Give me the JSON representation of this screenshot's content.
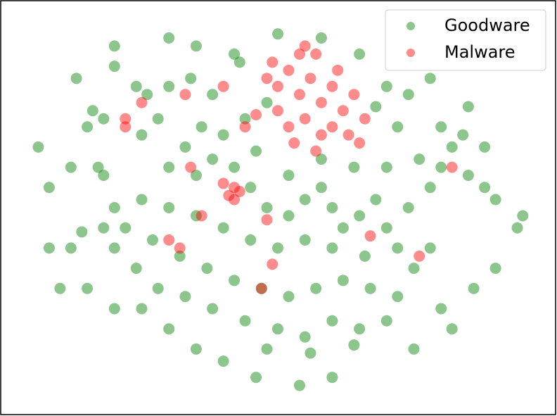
{
  "chart_data": {
    "type": "scatter",
    "xlim": [
      0,
      100
    ],
    "ylim": [
      0,
      100
    ],
    "legend": "upper right",
    "alpha": 0.45,
    "series": [
      {
        "name": "Goodware",
        "color": "#008000",
        "x": [
          30,
          33,
          36,
          40,
          28,
          25,
          35,
          38,
          42,
          45,
          48,
          52,
          55,
          58,
          60,
          62,
          65,
          68,
          70,
          72,
          66,
          60,
          55,
          50,
          45,
          40,
          35,
          30,
          25,
          20,
          22,
          27,
          32,
          37,
          42,
          47,
          52,
          57,
          62,
          67,
          72,
          75,
          78,
          74,
          78,
          80,
          82,
          85,
          88,
          90,
          76,
          70,
          64,
          58,
          52,
          46,
          44,
          48,
          38,
          34,
          30,
          26,
          42,
          43,
          18,
          16,
          17,
          18,
          18,
          20,
          24,
          28,
          33,
          38,
          44,
          50,
          55,
          60,
          65,
          70,
          35,
          40,
          48,
          56,
          64,
          30,
          25,
          15,
          13,
          20,
          24,
          68,
          72,
          80,
          84,
          70,
          74,
          12,
          14,
          8,
          8,
          6,
          94,
          95,
          90,
          86,
          80,
          82,
          75,
          20,
          15,
          10,
          46,
          54,
          60,
          35,
          50,
          58,
          30,
          65,
          78,
          85,
          20,
          12,
          88
        ],
        "y": [
          60,
          65,
          70,
          68,
          72,
          68,
          58,
          62,
          60,
          55,
          50,
          48,
          52,
          55,
          50,
          45,
          48,
          52,
          45,
          40,
          38,
          40,
          42,
          40,
          42,
          45,
          48,
          50,
          52,
          50,
          45,
          42,
          38,
          35,
          32,
          30,
          28,
          30,
          32,
          30,
          28,
          35,
          40,
          50,
          55,
          60,
          65,
          58,
          55,
          52,
          62,
          60,
          60,
          62,
          58,
          64,
          72,
          76,
          78,
          82,
          80,
          78,
          88,
          86,
          72,
          74,
          60,
          58,
          45,
          40,
          35,
          30,
          28,
          25,
          22,
          20,
          18,
          22,
          20,
          22,
          15,
          12,
          15,
          14,
          16,
          20,
          25,
          70,
          82,
          85,
          80,
          75,
          70,
          70,
          68,
          80,
          78,
          40,
          44,
          55,
          40,
          65,
          45,
          48,
          35,
          30,
          25,
          20,
          15,
          25,
          30,
          30,
          8,
          6,
          8,
          90,
          93,
          92,
          92,
          88,
          82,
          75,
          90,
          60,
          65
        ]
      },
      {
        "name": "Malware",
        "color": "#ff0000",
        "x": [
          48,
          50,
          52,
          54,
          56,
          58,
          60,
          62,
          64,
          55,
          50,
          46,
          60,
          63,
          58,
          52,
          66,
          49,
          61,
          57,
          55,
          44,
          65,
          53,
          57,
          42,
          43,
          41,
          42,
          40,
          25,
          22,
          34,
          36,
          32,
          30,
          48,
          49,
          47,
          67,
          76,
          82,
          33,
          40,
          22,
          54
        ],
        "y": [
          82,
          80,
          84,
          78,
          82,
          76,
          80,
          74,
          78,
          72,
          74,
          73,
          70,
          68,
          68,
          70,
          72,
          86,
          84,
          88,
          90,
          70,
          66,
          66,
          64,
          55,
          54,
          53,
          52,
          56,
          76,
          70,
          60,
          48,
          40,
          42,
          47,
          36,
          30,
          43,
          38,
          60,
          78,
          80,
          72,
          88
        ]
      }
    ]
  }
}
